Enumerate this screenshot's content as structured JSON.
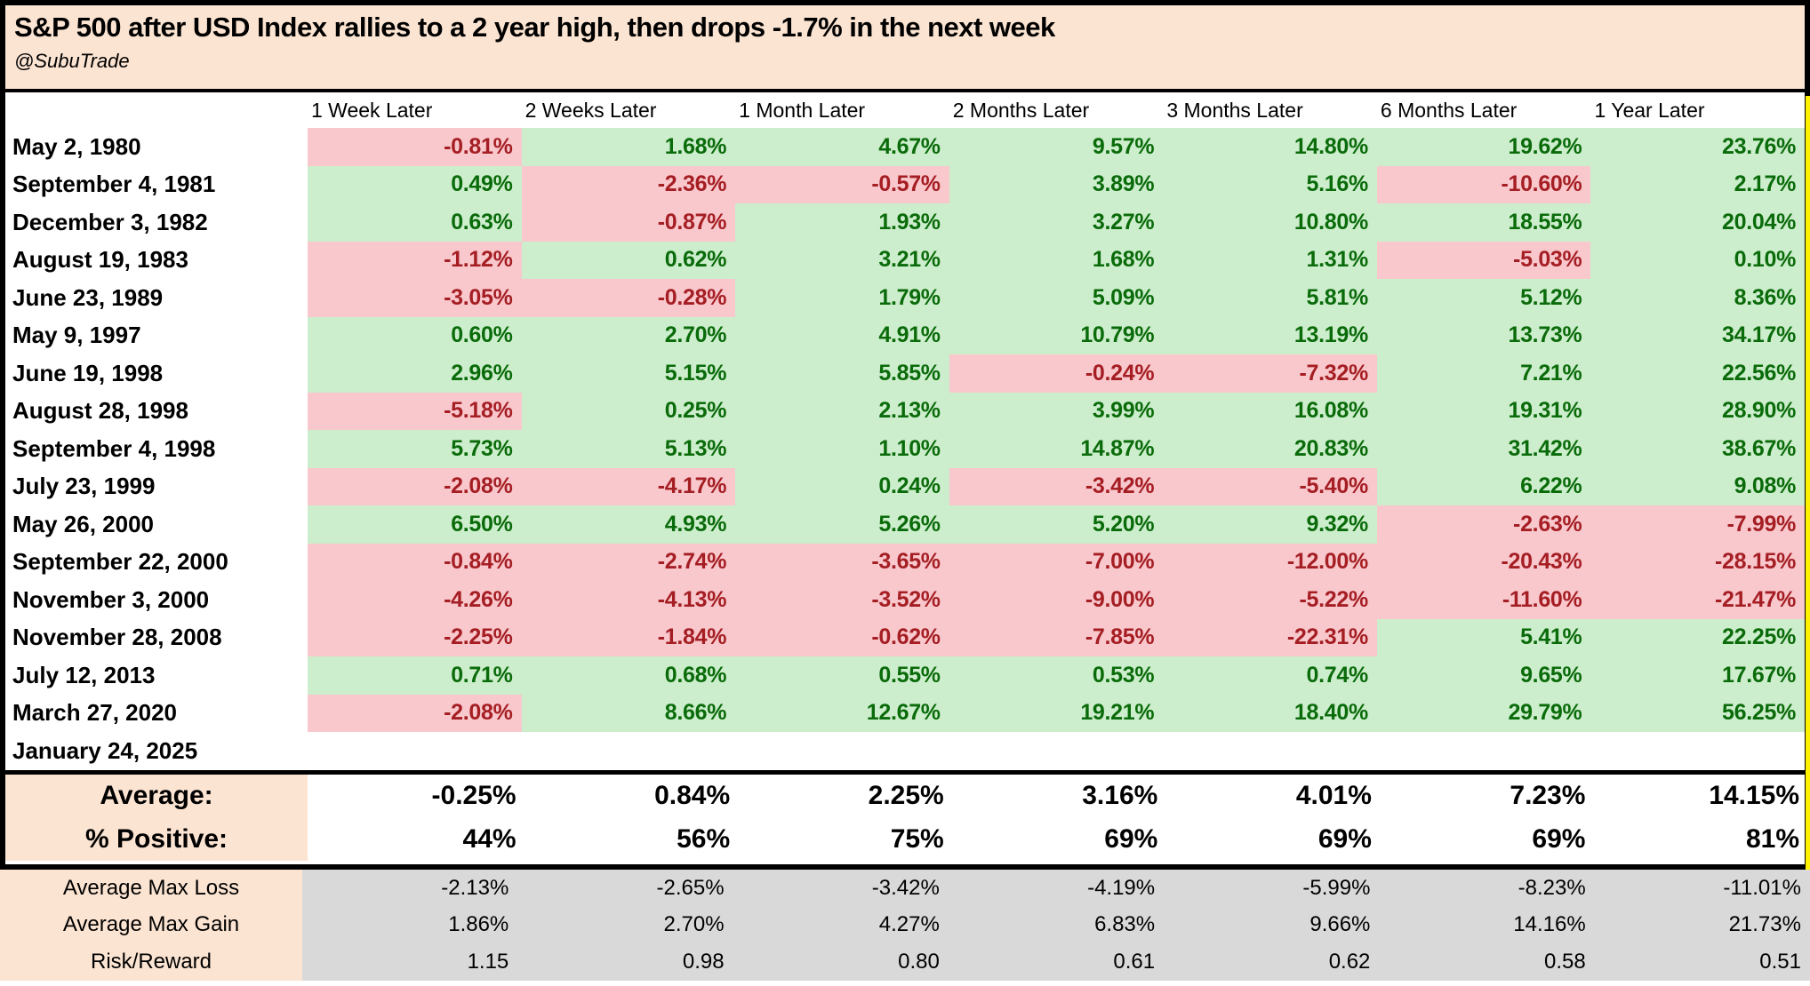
{
  "chart_data": {
    "type": "table",
    "title": "S&P 500 after USD Index rallies to a 2 year high, then drops -1.7% in the next week",
    "subtitle": "@SubuTrade",
    "columns": [
      "1 Week Later",
      "2 Weeks Later",
      "1 Month Later",
      "2 Months Later",
      "3 Months Later",
      "6 Months Later",
      "1 Year Later"
    ],
    "rows": [
      {
        "date": "May 2, 1980",
        "values": [
          "-0.81%",
          "1.68%",
          "4.67%",
          "9.57%",
          "14.80%",
          "19.62%",
          "23.76%"
        ]
      },
      {
        "date": "September 4, 1981",
        "values": [
          "0.49%",
          "-2.36%",
          "-0.57%",
          "3.89%",
          "5.16%",
          "-10.60%",
          "2.17%"
        ]
      },
      {
        "date": "December 3, 1982",
        "values": [
          "0.63%",
          "-0.87%",
          "1.93%",
          "3.27%",
          "10.80%",
          "18.55%",
          "20.04%"
        ]
      },
      {
        "date": "August 19, 1983",
        "values": [
          "-1.12%",
          "0.62%",
          "3.21%",
          "1.68%",
          "1.31%",
          "-5.03%",
          "0.10%"
        ]
      },
      {
        "date": "June 23, 1989",
        "values": [
          "-3.05%",
          "-0.28%",
          "1.79%",
          "5.09%",
          "5.81%",
          "5.12%",
          "8.36%"
        ]
      },
      {
        "date": "May 9, 1997",
        "values": [
          "0.60%",
          "2.70%",
          "4.91%",
          "10.79%",
          "13.19%",
          "13.73%",
          "34.17%"
        ]
      },
      {
        "date": "June 19, 1998",
        "values": [
          "2.96%",
          "5.15%",
          "5.85%",
          "-0.24%",
          "-7.32%",
          "7.21%",
          "22.56%"
        ]
      },
      {
        "date": "August 28, 1998",
        "values": [
          "-5.18%",
          "0.25%",
          "2.13%",
          "3.99%",
          "16.08%",
          "19.31%",
          "28.90%"
        ]
      },
      {
        "date": "September 4, 1998",
        "values": [
          "5.73%",
          "5.13%",
          "1.10%",
          "14.87%",
          "20.83%",
          "31.42%",
          "38.67%"
        ]
      },
      {
        "date": "July 23, 1999",
        "values": [
          "-2.08%",
          "-4.17%",
          "0.24%",
          "-3.42%",
          "-5.40%",
          "6.22%",
          "9.08%"
        ]
      },
      {
        "date": "May 26, 2000",
        "values": [
          "6.50%",
          "4.93%",
          "5.26%",
          "5.20%",
          "9.32%",
          "-2.63%",
          "-7.99%"
        ]
      },
      {
        "date": "September 22, 2000",
        "values": [
          "-0.84%",
          "-2.74%",
          "-3.65%",
          "-7.00%",
          "-12.00%",
          "-20.43%",
          "-28.15%"
        ]
      },
      {
        "date": "November 3, 2000",
        "values": [
          "-4.26%",
          "-4.13%",
          "-3.52%",
          "-9.00%",
          "-5.22%",
          "-11.60%",
          "-21.47%"
        ]
      },
      {
        "date": "November 28, 2008",
        "values": [
          "-2.25%",
          "-1.84%",
          "-0.62%",
          "-7.85%",
          "-22.31%",
          "5.41%",
          "22.25%"
        ]
      },
      {
        "date": "July 12, 2013",
        "values": [
          "0.71%",
          "0.68%",
          "0.55%",
          "0.53%",
          "0.74%",
          "9.65%",
          "17.67%"
        ]
      },
      {
        "date": "March 27, 2020",
        "values": [
          "-2.08%",
          "8.66%",
          "12.67%",
          "19.21%",
          "18.40%",
          "29.79%",
          "56.25%"
        ]
      },
      {
        "date": "January 24, 2025",
        "values": [
          "",
          "",
          "",
          "",
          "",
          "",
          ""
        ]
      }
    ],
    "summary": [
      {
        "label": "Average:",
        "values": [
          "-0.25%",
          "0.84%",
          "2.25%",
          "3.16%",
          "4.01%",
          "7.23%",
          "14.15%"
        ]
      },
      {
        "label": "% Positive:",
        "values": [
          "44%",
          "56%",
          "75%",
          "69%",
          "69%",
          "69%",
          "81%"
        ]
      }
    ],
    "stats": [
      {
        "label": "Average Max Loss",
        "values": [
          "-2.13%",
          "-2.65%",
          "-3.42%",
          "-4.19%",
          "-5.99%",
          "-8.23%",
          "-11.01%"
        ]
      },
      {
        "label": "Average Max Gain",
        "values": [
          "1.86%",
          "2.70%",
          "4.27%",
          "6.83%",
          "9.66%",
          "14.16%",
          "21.73%"
        ]
      },
      {
        "label": "Risk/Reward",
        "values": [
          "1.15",
          "0.98",
          "0.80",
          "0.61",
          "0.62",
          "0.58",
          "0.51"
        ]
      }
    ],
    "layout_hints": {
      "positive_cell_bg": "#CDEECD",
      "positive_text": "#0A6B0A",
      "negative_cell_bg": "#F8C8CD",
      "negative_text": "#A51E23",
      "title_bg": "#FCE4D2",
      "stats_bg": "#D9D9D9",
      "edge_highlight": "#FFF100"
    }
  }
}
